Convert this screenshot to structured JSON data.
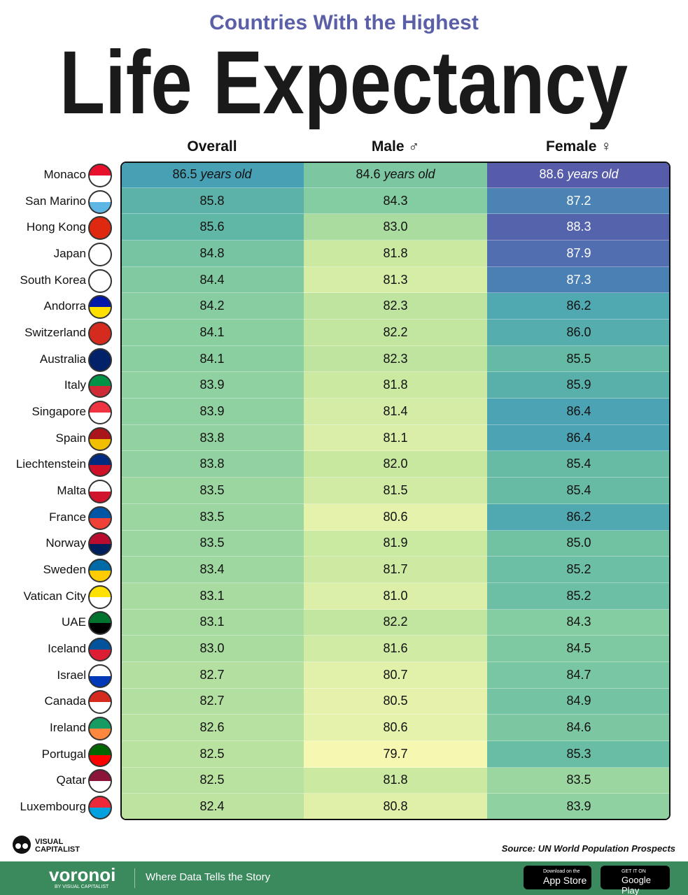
{
  "header": {
    "subtitle": "Countries With the Highest",
    "title": "Life Expectancy"
  },
  "table": {
    "columns": [
      "Overall",
      "Male ♂",
      "Female ♀"
    ],
    "unit": "years old",
    "rows": [
      {
        "country": "Monaco",
        "values": [
          "86.5",
          "84.6",
          "88.6"
        ]
      },
      {
        "country": "San Marino",
        "values": [
          "85.8",
          "84.3",
          "87.2"
        ]
      },
      {
        "country": "Hong Kong",
        "values": [
          "85.6",
          "83.0",
          "88.3"
        ]
      },
      {
        "country": "Japan",
        "values": [
          "84.8",
          "81.8",
          "87.9"
        ]
      },
      {
        "country": "South Korea",
        "values": [
          "84.4",
          "81.3",
          "87.3"
        ]
      },
      {
        "country": "Andorra",
        "values": [
          "84.2",
          "82.3",
          "86.2"
        ]
      },
      {
        "country": "Switzerland",
        "values": [
          "84.1",
          "82.2",
          "86.0"
        ]
      },
      {
        "country": "Australia",
        "values": [
          "84.1",
          "82.3",
          "85.5"
        ]
      },
      {
        "country": "Italy",
        "values": [
          "83.9",
          "81.8",
          "85.9"
        ]
      },
      {
        "country": "Singapore",
        "values": [
          "83.9",
          "81.4",
          "86.4"
        ]
      },
      {
        "country": "Spain",
        "values": [
          "83.8",
          "81.1",
          "86.4"
        ]
      },
      {
        "country": "Liechtenstein",
        "values": [
          "83.8",
          "82.0",
          "85.4"
        ]
      },
      {
        "country": "Malta",
        "values": [
          "83.5",
          "81.5",
          "85.4"
        ]
      },
      {
        "country": "France",
        "values": [
          "83.5",
          "80.6",
          "86.2"
        ]
      },
      {
        "country": "Norway",
        "values": [
          "83.5",
          "81.9",
          "85.0"
        ]
      },
      {
        "country": "Sweden",
        "values": [
          "83.4",
          "81.7",
          "85.2"
        ]
      },
      {
        "country": "Vatican City",
        "values": [
          "83.1",
          "81.0",
          "85.2"
        ]
      },
      {
        "country": "UAE",
        "values": [
          "83.1",
          "82.2",
          "84.3"
        ]
      },
      {
        "country": "Iceland",
        "values": [
          "83.0",
          "81.6",
          "84.5"
        ]
      },
      {
        "country": "Israel",
        "values": [
          "82.7",
          "80.7",
          "84.7"
        ]
      },
      {
        "country": "Canada",
        "values": [
          "82.7",
          "80.5",
          "84.9"
        ]
      },
      {
        "country": "Ireland",
        "values": [
          "82.6",
          "80.6",
          "84.6"
        ]
      },
      {
        "country": "Portugal",
        "values": [
          "82.5",
          "79.7",
          "85.3"
        ]
      },
      {
        "country": "Qatar",
        "values": [
          "82.5",
          "81.8",
          "83.5"
        ]
      },
      {
        "country": "Luxembourg",
        "values": [
          "82.4",
          "80.8",
          "83.9"
        ]
      }
    ]
  },
  "footer": {
    "logo": [
      "VISUAL",
      "CAPITALIST"
    ],
    "source": "Source: UN World Population Prospects",
    "brand": "voronoi",
    "brand_sub": "BY VISUAL CAPITALIST",
    "tagline": "Where Data Tells the Story",
    "app_store": [
      "Download on the",
      "App Store"
    ],
    "google_play": [
      "GET IT ON",
      "Google Play"
    ]
  }
}
